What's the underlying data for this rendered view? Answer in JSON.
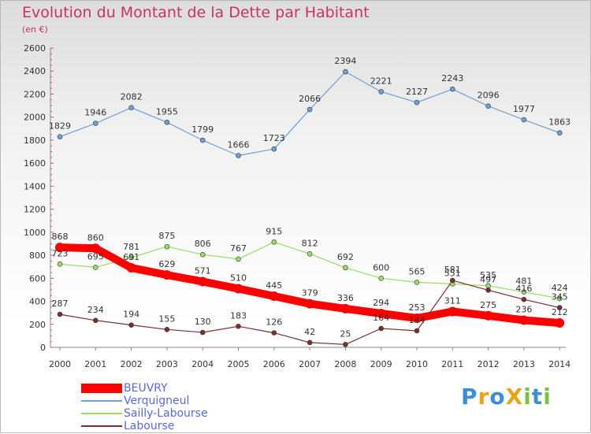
{
  "title": "Evolution du Montant de la Dette par Habitant",
  "subtitle": "(en €)",
  "brand": "ProXiti",
  "chart_data": {
    "type": "line",
    "title": "Evolution du Montant de la Dette par Habitant",
    "ylabel": "(en €)",
    "categories": [
      "2000",
      "2001",
      "2002",
      "2003",
      "2004",
      "2005",
      "2006",
      "2007",
      "2008",
      "2009",
      "2010",
      "2011",
      "2012",
      "2013",
      "2014"
    ],
    "y_ticks": [
      0,
      200,
      400,
      600,
      800,
      1000,
      1200,
      1400,
      1600,
      1800,
      2000,
      2200,
      2400,
      2600
    ],
    "ylim": [
      0,
      2600
    ],
    "grid": false,
    "legend_position": "bottom-left",
    "series": [
      {
        "name": "BEUVRY",
        "color": "#ff0000",
        "values": [
          868,
          860,
          691,
          629,
          571,
          510,
          445,
          379,
          336,
          294,
          253,
          311,
          275,
          236,
          212
        ]
      },
      {
        "name": "Verquigneul",
        "color": "#6f9fd7",
        "values": [
          1829,
          1946,
          2082,
          1955,
          1799,
          1666,
          1723,
          2066,
          2394,
          2221,
          2127,
          2243,
          2096,
          1977,
          1863
        ]
      },
      {
        "name": "Sailly-Labourse",
        "color": "#97dd62",
        "values": [
          723,
          695,
          781,
          875,
          806,
          767,
          915,
          812,
          692,
          600,
          565,
          551,
          535,
          481,
          424
        ]
      },
      {
        "name": "Labourse",
        "color": "#7a2f2f",
        "values": [
          287,
          234,
          194,
          155,
          130,
          183,
          126,
          42,
          25,
          164,
          144,
          581,
          497,
          416,
          345
        ]
      }
    ]
  }
}
